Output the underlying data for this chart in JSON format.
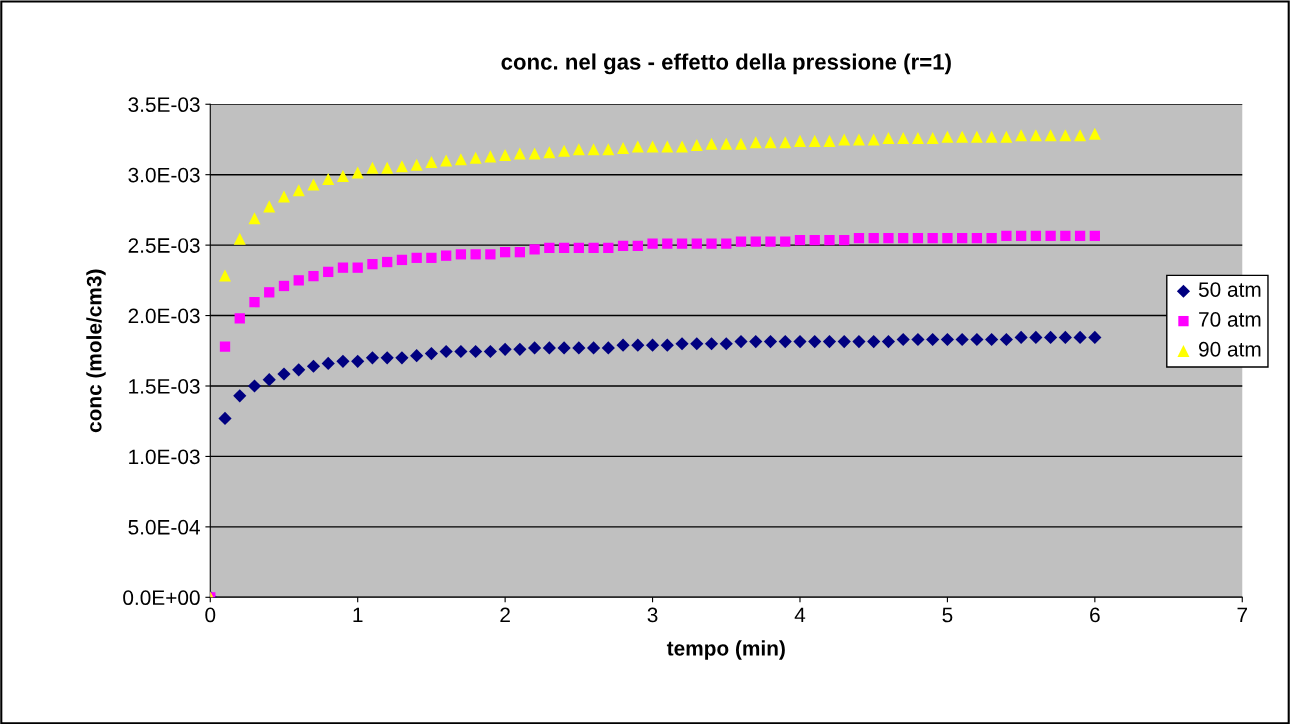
{
  "chart_data": {
    "type": "scatter",
    "title": "conc. nel gas - effetto della pressione (r=1)",
    "xlabel": "tempo (min)",
    "ylabel": "conc (mole/cm3)",
    "x": [
      0,
      0.1,
      0.2,
      0.3,
      0.4,
      0.5,
      0.6,
      0.7,
      0.8,
      0.9,
      1.0,
      1.1,
      1.2,
      1.3,
      1.4,
      1.5,
      1.6,
      1.7,
      1.8,
      1.9,
      2.0,
      2.1,
      2.2,
      2.3,
      2.4,
      2.5,
      2.6,
      2.7,
      2.8,
      2.9,
      3.0,
      3.1,
      3.2,
      3.3,
      3.4,
      3.5,
      3.6,
      3.7,
      3.8,
      3.9,
      4.0,
      4.1,
      4.2,
      4.3,
      4.4,
      4.5,
      4.6,
      4.7,
      4.8,
      4.9,
      5.0,
      5.1,
      5.2,
      5.3,
      5.4,
      5.5,
      5.6,
      5.7,
      5.8,
      5.9,
      6.0
    ],
    "series": [
      {
        "name": "50 atm",
        "color": "#000080",
        "marker": "diamond",
        "values": [
          0,
          0.00127,
          0.00143,
          0.0015,
          0.001545,
          0.001585,
          0.001615,
          0.00164,
          0.00166,
          0.001675,
          0.001675,
          0.0017,
          0.0017,
          0.0017,
          0.001715,
          0.00173,
          0.001745,
          0.001745,
          0.001745,
          0.001745,
          0.00176,
          0.00176,
          0.00177,
          0.00177,
          0.00177,
          0.00177,
          0.00177,
          0.00177,
          0.00179,
          0.00179,
          0.00179,
          0.00179,
          0.0018,
          0.0018,
          0.0018,
          0.0018,
          0.001815,
          0.001815,
          0.001815,
          0.001815,
          0.001815,
          0.001815,
          0.001815,
          0.001815,
          0.001815,
          0.001815,
          0.001815,
          0.00183,
          0.00183,
          0.00183,
          0.00183,
          0.00183,
          0.00183,
          0.00183,
          0.00183,
          0.001845,
          0.001845,
          0.001845,
          0.001845,
          0.001845,
          0.001845
        ]
      },
      {
        "name": "70 atm",
        "color": "#ff00ff",
        "marker": "square",
        "values": [
          0,
          0.00178,
          0.00198,
          0.002095,
          0.002165,
          0.00221,
          0.00225,
          0.00228,
          0.00231,
          0.00234,
          0.00234,
          0.002365,
          0.00238,
          0.002395,
          0.00241,
          0.00241,
          0.002425,
          0.002435,
          0.002435,
          0.002435,
          0.00245,
          0.00245,
          0.00247,
          0.00248,
          0.00248,
          0.00248,
          0.00248,
          0.00248,
          0.002495,
          0.002495,
          0.00251,
          0.00251,
          0.00251,
          0.00251,
          0.00251,
          0.00251,
          0.002525,
          0.002525,
          0.002525,
          0.002525,
          0.002535,
          0.002535,
          0.002535,
          0.002535,
          0.00255,
          0.00255,
          0.00255,
          0.00255,
          0.00255,
          0.00255,
          0.00255,
          0.00255,
          0.00255,
          0.00255,
          0.002565,
          0.002565,
          0.002565,
          0.002565,
          0.002565,
          0.002565,
          0.002565
        ]
      },
      {
        "name": "90 atm",
        "color": "#ffff00",
        "marker": "triangle",
        "values": [
          0,
          0.002285,
          0.002545,
          0.00269,
          0.002775,
          0.002845,
          0.00289,
          0.00293,
          0.00297,
          0.00299,
          0.003015,
          0.00305,
          0.00305,
          0.00306,
          0.00307,
          0.00309,
          0.0031,
          0.00311,
          0.00312,
          0.00313,
          0.00314,
          0.00315,
          0.00315,
          0.00316,
          0.00317,
          0.00318,
          0.00318,
          0.00318,
          0.00319,
          0.0032,
          0.0032,
          0.0032,
          0.0032,
          0.00321,
          0.00322,
          0.00322,
          0.00322,
          0.00323,
          0.00323,
          0.00323,
          0.00324,
          0.00324,
          0.00324,
          0.00325,
          0.00325,
          0.00325,
          0.00326,
          0.00326,
          0.00326,
          0.00326,
          0.00327,
          0.00327,
          0.00327,
          0.00327,
          0.00327,
          0.00328,
          0.00328,
          0.00328,
          0.00328,
          0.00328,
          0.00329
        ]
      }
    ],
    "xlim": [
      0,
      7
    ],
    "xticks": [
      0,
      1,
      2,
      3,
      4,
      5,
      6,
      7
    ],
    "ylim": [
      0,
      0.0035
    ],
    "yticks": [
      {
        "value": 0,
        "label": "0.0E+00"
      },
      {
        "value": 0.0005,
        "label": "5.0E-04"
      },
      {
        "value": 0.001,
        "label": "1.0E-03"
      },
      {
        "value": 0.0015,
        "label": "1.5E-03"
      },
      {
        "value": 0.002,
        "label": "2.0E-03"
      },
      {
        "value": 0.0025,
        "label": "2.5E-03"
      },
      {
        "value": 0.003,
        "label": "3.0E-03"
      },
      {
        "value": 0.0035,
        "label": "3.5E-03"
      }
    ],
    "grid": "y",
    "legend": "right"
  }
}
